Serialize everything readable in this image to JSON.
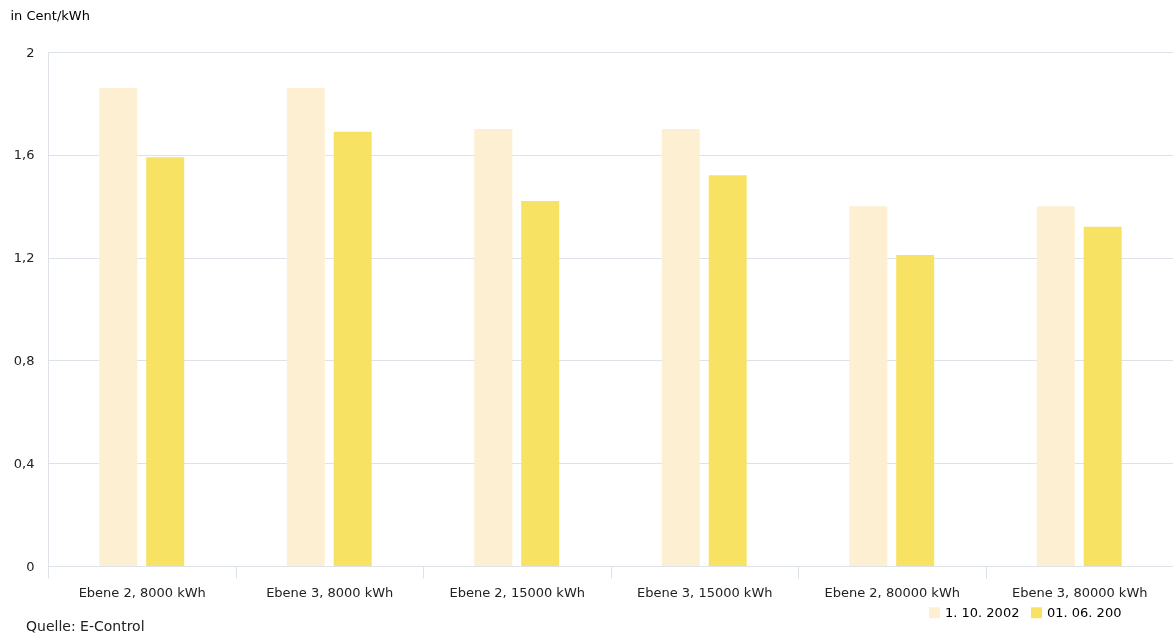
{
  "chart_data": {
    "type": "bar",
    "ylabel": "in Cent/kWh",
    "categories": [
      "Ebene 2, 8000 kWh",
      "Ebene 3, 8000 kWh",
      "Ebene 2, 15000 kWh",
      "Ebene 3, 15000 kWh",
      "Ebene 2, 80000 kWh",
      "Ebene 3, 80000 kWh"
    ],
    "series": [
      {
        "name": "1. 10. 2002",
        "color": "#fdf0d2",
        "values": [
          1.86,
          1.86,
          1.7,
          1.7,
          1.4,
          1.4
        ]
      },
      {
        "name": "01. 06. 200",
        "color": "#f8e263",
        "values": [
          1.59,
          1.69,
          1.42,
          1.52,
          1.21,
          1.32
        ]
      }
    ],
    "ylim": [
      0,
      2
    ],
    "yticks": [
      0,
      {
        "value": 0.4,
        "label": "0,4"
      },
      {
        "value": 0.8,
        "label": "0,8"
      },
      {
        "value": 1.2,
        "label": "1,2"
      },
      {
        "value": 1.6,
        "label": "1,6"
      },
      2
    ],
    "grid": "y",
    "legend": "bottom right",
    "annotations": [
      "Quelle: E-Control"
    ]
  }
}
